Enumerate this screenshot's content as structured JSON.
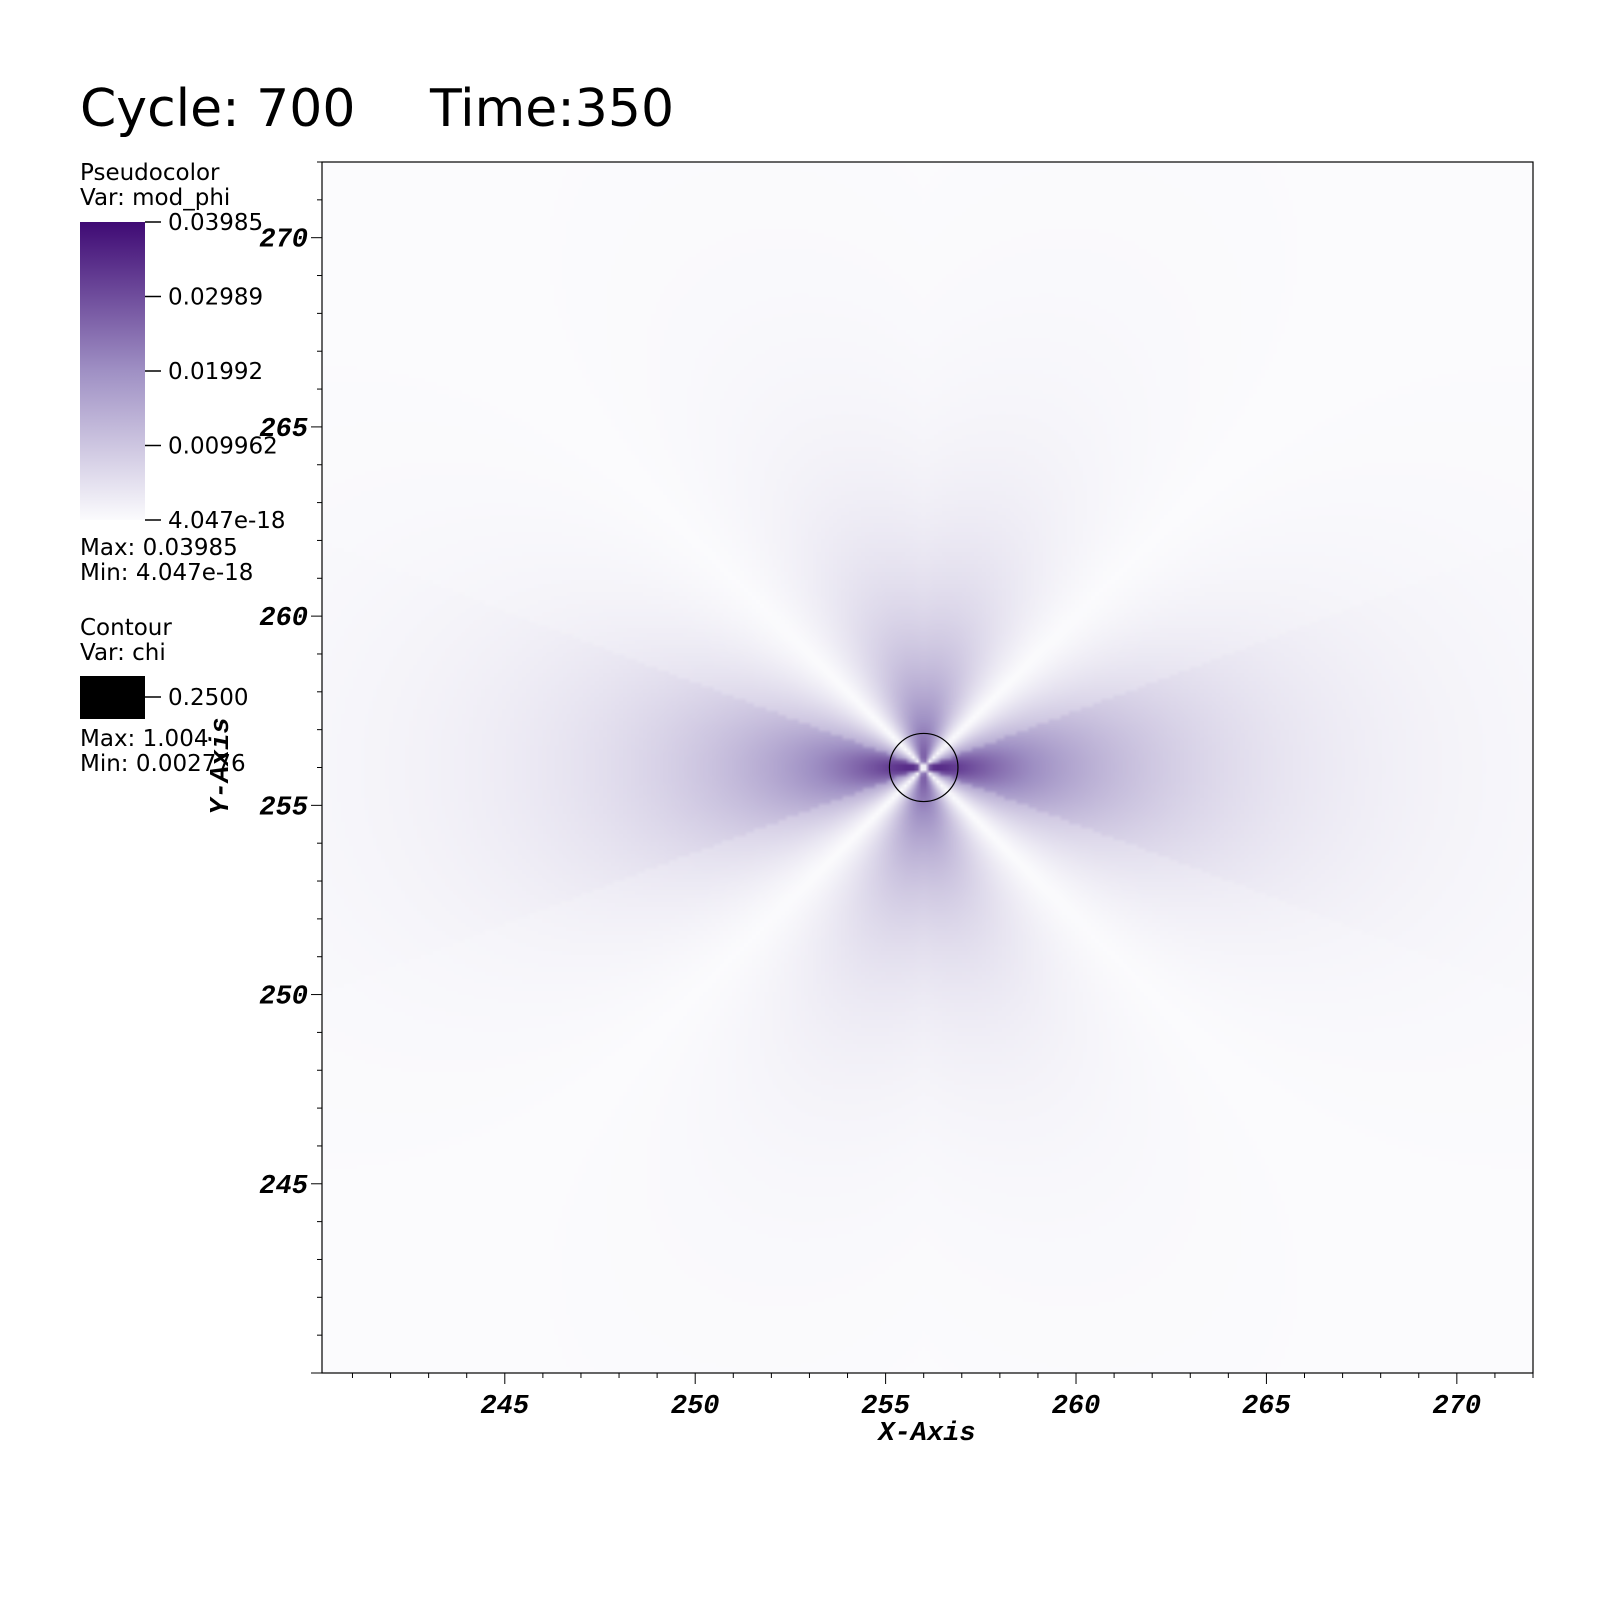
{
  "header": {
    "cycle_text": "Cycle: 700",
    "time_text": "Time:350"
  },
  "legend": {
    "pseudocolor": {
      "title": "Pseudocolor",
      "var_text": "Var: mod_phi",
      "ticks": [
        "0.03985",
        "0.02989",
        "0.01992",
        "0.009962",
        "4.047e-18"
      ],
      "max_text": "Max:  0.03985",
      "min_text": "Min:  4.047e-18",
      "color_high": "#3f0a74",
      "color_low": "#fbfbfd"
    },
    "contour": {
      "title": "Contour",
      "var_text": "Var: chi",
      "level_text": "0.2500",
      "max_text": "Max:  1.004",
      "min_text": "Min:  0.002776",
      "swatch_color": "#000000"
    }
  },
  "chart_data": {
    "type": "heatmap",
    "xlabel": "X-Axis",
    "ylabel": "Y-Axis",
    "xlim": [
      240.2,
      272.0
    ],
    "ylim": [
      240.0,
      272.0
    ],
    "x_ticks": [
      245,
      250,
      255,
      260,
      265,
      270
    ],
    "y_ticks": [
      245,
      250,
      255,
      260,
      265,
      270
    ],
    "field": {
      "variable": "mod_phi",
      "center": [
        256.0,
        256.0
      ],
      "max": 0.03985,
      "min": 4.047e-18,
      "pattern": "four-lobed, strongest along x-axis through center, zero along diagonals"
    },
    "contour": {
      "variable": "chi",
      "level": 0.25,
      "shape": "circle",
      "center": [
        256.0,
        256.0
      ],
      "radius": 0.9,
      "color": "#000000"
    }
  }
}
